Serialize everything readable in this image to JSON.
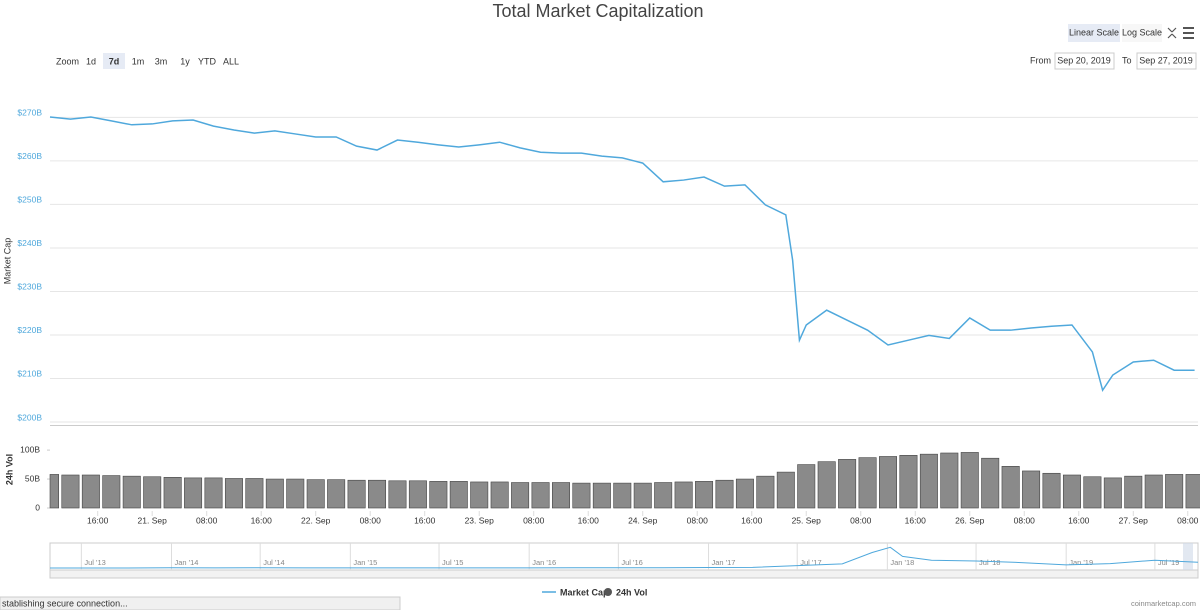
{
  "header": {
    "title": "Total Market Capitalization",
    "scale_buttons": [
      "Linear Scale",
      "Log Scale"
    ]
  },
  "zoom": {
    "label": "Zoom",
    "buttons": [
      "1d",
      "7d",
      "1m",
      "3m",
      "1y",
      "YTD",
      "ALL"
    ]
  },
  "range": {
    "from_label": "From",
    "from": "Sep 20, 2019",
    "to_label": "To",
    "to": "Sep 27, 2019"
  },
  "chart_data": [
    {
      "type": "line",
      "y_label": "Market Cap",
      "x": [
        "2019-09-20T09:00",
        "2019-09-20T12:00",
        "2019-09-20T15:00",
        "2019-09-20T18:00",
        "2019-09-20T21:00",
        "2019-09-21T00:00",
        "2019-09-21T03:00",
        "2019-09-21T06:00",
        "2019-09-21T09:00",
        "2019-09-21T12:00",
        "2019-09-21T15:00",
        "2019-09-21T18:00",
        "2019-09-21T21:00",
        "2019-09-22T00:00",
        "2019-09-22T03:00",
        "2019-09-22T06:00",
        "2019-09-22T09:00",
        "2019-09-22T12:00",
        "2019-09-22T15:00",
        "2019-09-22T18:00",
        "2019-09-22T21:00",
        "2019-09-23T00:00",
        "2019-09-23T03:00",
        "2019-09-23T06:00",
        "2019-09-23T09:00",
        "2019-09-23T12:00",
        "2019-09-23T15:00",
        "2019-09-23T18:00",
        "2019-09-23T21:00",
        "2019-09-24T00:00",
        "2019-09-24T03:00",
        "2019-09-24T06:00",
        "2019-09-24T09:00",
        "2019-09-24T12:00",
        "2019-09-24T15:00",
        "2019-09-24T18:00",
        "2019-09-24T21:00",
        "2019-09-24T22:00",
        "2019-09-24T23:00",
        "2019-09-25T00:00",
        "2019-09-25T03:00",
        "2019-09-25T06:00",
        "2019-09-25T09:00",
        "2019-09-25T12:00",
        "2019-09-25T15:00",
        "2019-09-25T18:00",
        "2019-09-25T21:00",
        "2019-09-26T00:00",
        "2019-09-26T03:00",
        "2019-09-26T06:00",
        "2019-09-26T09:00",
        "2019-09-26T12:00",
        "2019-09-26T15:00",
        "2019-09-26T18:00",
        "2019-09-26T19:30",
        "2019-09-26T21:00",
        "2019-09-27T00:00",
        "2019-09-27T03:00",
        "2019-09-27T06:00",
        "2019-09-27T09:00"
      ],
      "series": [
        {
          "name": "Market Cap",
          "color": "#4fa8dc",
          "values": [
            270.1,
            269.6,
            270.1,
            269.2,
            268.3,
            268.5,
            269.2,
            269.4,
            268.0,
            267.1,
            266.4,
            266.9,
            266.2,
            265.5,
            265.5,
            263.4,
            262.5,
            264.8,
            264.3,
            263.7,
            263.2,
            263.7,
            264.3,
            263.0,
            262.0,
            261.8,
            261.8,
            261.1,
            260.7,
            259.5,
            255.2,
            255.6,
            256.3,
            254.2,
            254.5,
            249.9,
            247.6,
            237.2,
            218.8,
            222.3,
            225.7,
            223.4,
            221.1,
            217.7,
            218.8,
            219.9,
            219.2,
            223.9,
            221.1,
            221.1,
            221.6,
            222.0,
            222.3,
            216.1,
            207.3,
            210.8,
            213.8,
            214.2,
            211.9,
            211.9
          ]
        }
      ],
      "xlim": [
        "2019-09-20T09:00",
        "2019-09-27T09:30"
      ],
      "ylim": [
        200,
        274
      ],
      "yticks": [
        {
          "value": 200,
          "label": "$200B"
        },
        {
          "value": 210,
          "label": "$210B"
        },
        {
          "value": 220,
          "label": "$220B"
        },
        {
          "value": 230,
          "label": "$230B"
        },
        {
          "value": 240,
          "label": "$240B"
        },
        {
          "value": 250,
          "label": "$250B"
        },
        {
          "value": 260,
          "label": "$260B"
        },
        {
          "value": 270,
          "label": "$270B"
        }
      ],
      "grid": true
    },
    {
      "type": "bar",
      "y_label": "24h Vol",
      "x": [
        "2019-09-20T09:00",
        "2019-09-20T12:00",
        "2019-09-20T15:00",
        "2019-09-20T18:00",
        "2019-09-20T21:00",
        "2019-09-21T00:00",
        "2019-09-21T03:00",
        "2019-09-21T06:00",
        "2019-09-21T09:00",
        "2019-09-21T12:00",
        "2019-09-21T15:00",
        "2019-09-21T18:00",
        "2019-09-21T21:00",
        "2019-09-22T00:00",
        "2019-09-22T03:00",
        "2019-09-22T06:00",
        "2019-09-22T09:00",
        "2019-09-22T12:00",
        "2019-09-22T15:00",
        "2019-09-22T18:00",
        "2019-09-22T21:00",
        "2019-09-23T00:00",
        "2019-09-23T03:00",
        "2019-09-23T06:00",
        "2019-09-23T09:00",
        "2019-09-23T12:00",
        "2019-09-23T15:00",
        "2019-09-23T18:00",
        "2019-09-23T21:00",
        "2019-09-24T00:00",
        "2019-09-24T03:00",
        "2019-09-24T06:00",
        "2019-09-24T09:00",
        "2019-09-24T12:00",
        "2019-09-24T15:00",
        "2019-09-24T18:00",
        "2019-09-24T21:00",
        "2019-09-25T00:00",
        "2019-09-25T03:00",
        "2019-09-25T06:00",
        "2019-09-25T09:00",
        "2019-09-25T12:00",
        "2019-09-25T15:00",
        "2019-09-25T18:00",
        "2019-09-25T21:00",
        "2019-09-26T00:00",
        "2019-09-26T03:00",
        "2019-09-26T06:00",
        "2019-09-26T09:00",
        "2019-09-26T12:00",
        "2019-09-26T15:00",
        "2019-09-26T18:00",
        "2019-09-26T21:00",
        "2019-09-27T00:00",
        "2019-09-27T03:00",
        "2019-09-27T06:00",
        "2019-09-27T09:00"
      ],
      "series": [
        {
          "name": "24h Vol",
          "color": "#8a8a8a",
          "values": [
            58,
            57,
            57,
            56,
            55,
            54,
            53,
            52,
            52,
            51,
            51,
            50,
            50,
            49,
            49,
            48,
            48,
            47,
            47,
            46,
            46,
            45,
            45,
            44,
            44,
            44,
            43,
            43,
            43,
            43,
            44,
            45,
            46,
            48,
            50,
            55,
            62,
            75,
            80,
            84,
            87,
            89,
            91,
            93,
            95,
            96,
            86,
            72,
            64,
            60,
            57,
            54,
            52,
            55,
            57,
            58,
            58
          ]
        }
      ],
      "xlim": [
        "2019-09-20T09:00",
        "2019-09-27T09:30"
      ],
      "ylim": [
        0,
        133
      ],
      "yticks": [
        0,
        {
          "value": 50,
          "label": "50B"
        },
        {
          "value": 100,
          "label": "100B"
        }
      ],
      "xticks": [
        {
          "value": "2019-09-20T16:00",
          "label": "16:00"
        },
        {
          "value": "2019-09-21T00:00",
          "label": "21. Sep"
        },
        {
          "value": "2019-09-21T08:00",
          "label": "08:00"
        },
        {
          "value": "2019-09-21T16:00",
          "label": "16:00"
        },
        {
          "value": "2019-09-22T00:00",
          "label": "22. Sep"
        },
        {
          "value": "2019-09-22T08:00",
          "label": "08:00"
        },
        {
          "value": "2019-09-22T16:00",
          "label": "16:00"
        },
        {
          "value": "2019-09-23T00:00",
          "label": "23. Sep"
        },
        {
          "value": "2019-09-23T08:00",
          "label": "08:00"
        },
        {
          "value": "2019-09-23T16:00",
          "label": "16:00"
        },
        {
          "value": "2019-09-24T00:00",
          "label": "24. Sep"
        },
        {
          "value": "2019-09-24T08:00",
          "label": "08:00"
        },
        {
          "value": "2019-09-24T16:00",
          "label": "16:00"
        },
        {
          "value": "2019-09-25T00:00",
          "label": "25. Sep"
        },
        {
          "value": "2019-09-25T08:00",
          "label": "08:00"
        },
        {
          "value": "2019-09-25T16:00",
          "label": "16:00"
        },
        {
          "value": "2019-09-26T00:00",
          "label": "26. Sep"
        },
        {
          "value": "2019-09-26T08:00",
          "label": "08:00"
        },
        {
          "value": "2019-09-26T16:00",
          "label": "16:00"
        },
        {
          "value": "2019-09-27T00:00",
          "label": "27. Sep"
        },
        {
          "value": "2019-09-27T08:00",
          "label": "08:00"
        }
      ]
    },
    {
      "type": "area",
      "x": [
        "2013-04-28",
        "2013-07-01",
        "2013-10-01",
        "2014-01-01",
        "2014-04-01",
        "2014-07-01",
        "2014-10-01",
        "2015-01-01",
        "2015-04-01",
        "2015-07-01",
        "2015-10-01",
        "2016-01-01",
        "2016-04-01",
        "2016-07-01",
        "2016-10-01",
        "2017-01-01",
        "2017-04-01",
        "2017-07-01",
        "2017-10-01",
        "2017-12-01",
        "2018-01-07",
        "2018-02-01",
        "2018-04-01",
        "2018-07-01",
        "2018-10-01",
        "2019-01-01",
        "2019-04-01",
        "2019-07-01",
        "2019-09-27"
      ],
      "series": [
        {
          "name": "Market Cap",
          "color": "#4fa8dc",
          "values": [
            1.5,
            1.2,
            2,
            10,
            6,
            8,
            5,
            4,
            3.5,
            4.5,
            4.5,
            7,
            7.5,
            11,
            12,
            17,
            25,
            90,
            160,
            600,
            800,
            450,
            300,
            270,
            210,
            120,
            170,
            300,
            220
          ]
        }
      ],
      "xlim": [
        "2013-04-28",
        "2019-09-27"
      ],
      "ylim": [
        0,
        850
      ],
      "xticks": [
        {
          "value": "2013-07-01",
          "label": "Jul '13"
        },
        {
          "value": "2014-01-01",
          "label": "Jan '14"
        },
        {
          "value": "2014-07-01",
          "label": "Jul '14"
        },
        {
          "value": "2015-01-01",
          "label": "Jan '15"
        },
        {
          "value": "2015-07-01",
          "label": "Jul '15"
        },
        {
          "value": "2016-01-01",
          "label": "Jan '16"
        },
        {
          "value": "2016-07-01",
          "label": "Jul '16"
        },
        {
          "value": "2017-01-01",
          "label": "Jan '17"
        },
        {
          "value": "2017-07-01",
          "label": "Jul '17"
        },
        {
          "value": "2018-01-01",
          "label": "Jan '18"
        },
        {
          "value": "2018-07-01",
          "label": "Jul '18"
        },
        {
          "value": "2019-01-01",
          "label": "Jan '19"
        },
        {
          "value": "2019-07-01",
          "label": "Jul '19"
        }
      ]
    }
  ],
  "status": "stablishing secure connection...",
  "credit": "coinmarketcap.com"
}
